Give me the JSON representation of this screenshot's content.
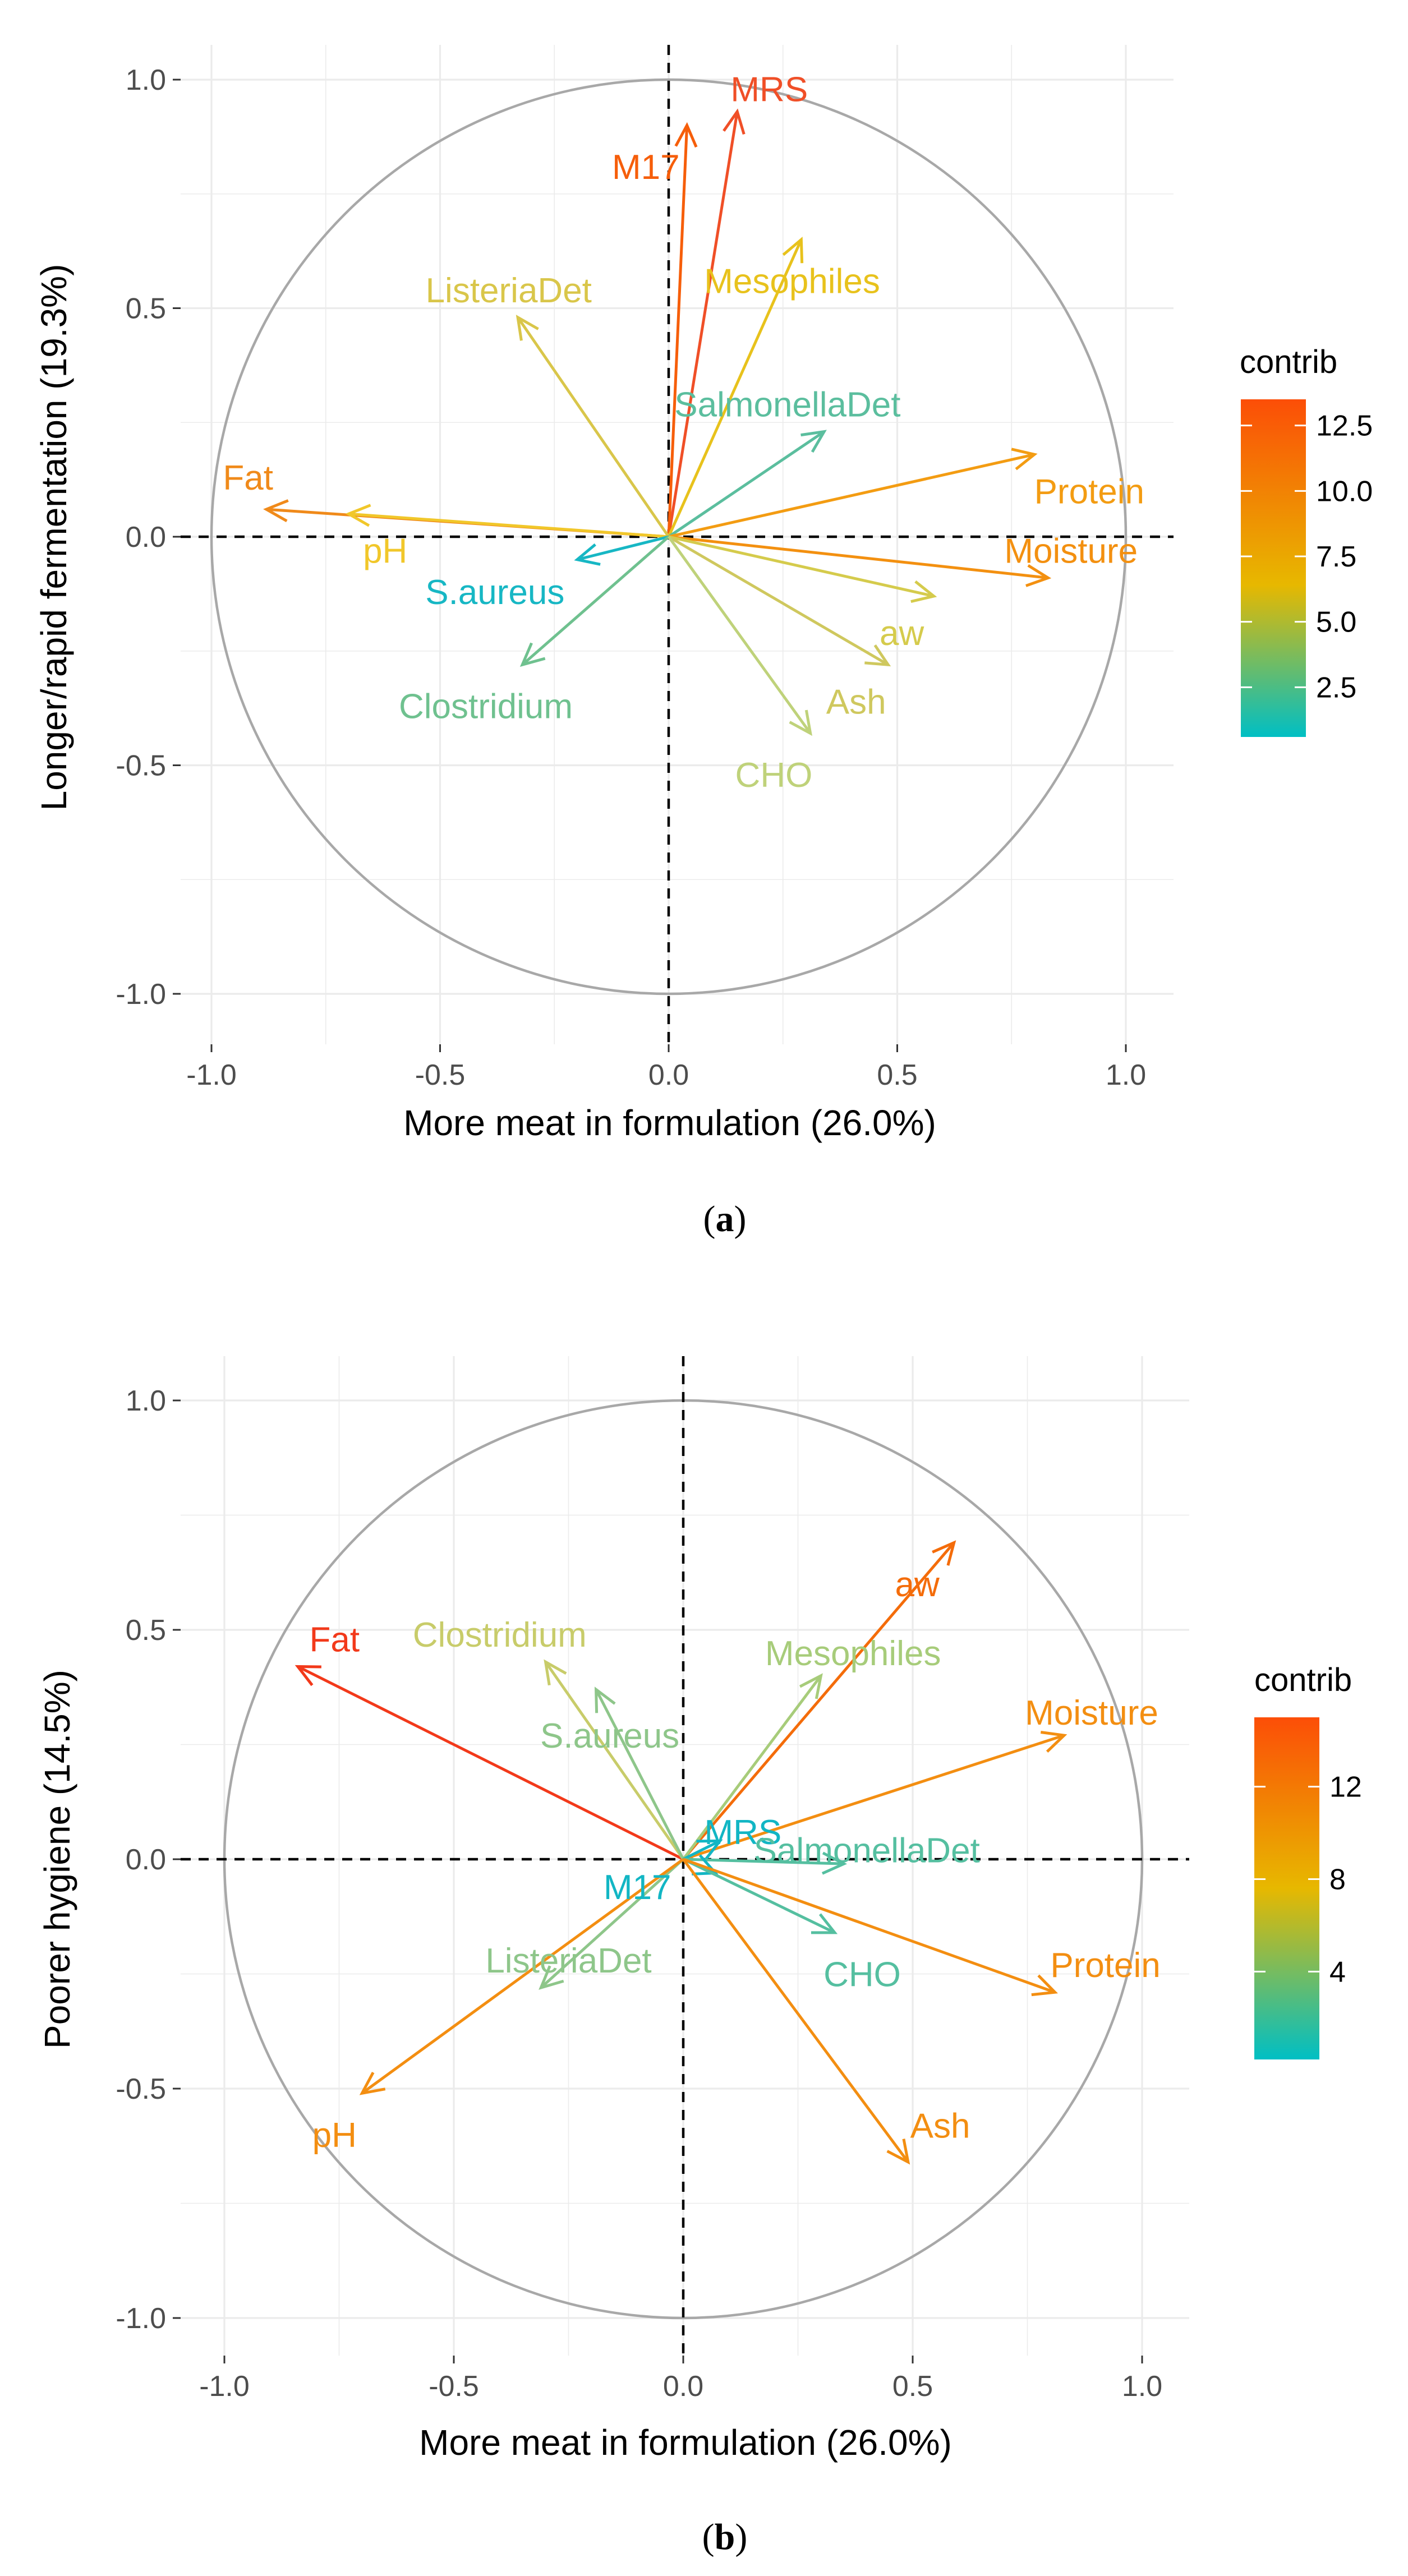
{
  "colors": {
    "low": "#00BFC4",
    "mid": "#E7B800",
    "high": "#FC4E07",
    "circle": "#a8a8a8",
    "grid": "#ebebeb"
  },
  "chart_data": [
    {
      "type": "scatter",
      "subtype": "pca-variable-correlation-circle",
      "panel": "(a)",
      "panel_letter": "a",
      "xlabel": "More meat in formulation (26.0%)",
      "ylabel": "Longer/rapid fermentation (19.3%)",
      "xlim": [
        -1.0,
        1.0
      ],
      "ylim": [
        -1.0,
        1.0
      ],
      "x_ticks": [
        "-1.0",
        "-0.5",
        "0.0",
        "0.5",
        "1.0"
      ],
      "y_ticks": [
        "-1.0",
        "-0.5",
        "0.0",
        "0.5",
        "1.0"
      ],
      "grid": true,
      "legend": {
        "title": "contrib",
        "placement": "right",
        "min": 0.6,
        "max": 13.5,
        "ticks": [
          "2.5",
          "5.0",
          "7.5",
          "10.0",
          "12.5"
        ],
        "tick_values": [
          2.5,
          5.0,
          7.5,
          10.0,
          12.5
        ]
      },
      "variables": [
        {
          "name": "MRS",
          "x": 0.15,
          "y": 0.93,
          "contrib": 13.3,
          "color": "#F04F27",
          "lx": 0.22,
          "ly": 0.98
        },
        {
          "name": "M17",
          "x": 0.04,
          "y": 0.9,
          "contrib": 12.2,
          "color": "#F65E0A",
          "lx": -0.05,
          "ly": 0.81
        },
        {
          "name": "Mesophiles",
          "x": 0.29,
          "y": 0.65,
          "contrib": 6.2,
          "color": "#E8C21C",
          "lx": 0.27,
          "ly": 0.56
        },
        {
          "name": "ListeriaDet",
          "x": -0.33,
          "y": 0.48,
          "contrib": 5.5,
          "color": "#D9C64A",
          "lx": -0.35,
          "ly": 0.54
        },
        {
          "name": "SalmonellaDet",
          "x": 0.34,
          "y": 0.23,
          "contrib": 3.0,
          "color": "#5BBE9E",
          "lx": 0.26,
          "ly": 0.29
        },
        {
          "name": "Protein",
          "x": 0.8,
          "y": 0.18,
          "contrib": 9.8,
          "color": "#F39C12",
          "lx": 0.92,
          "ly": 0.1
        },
        {
          "name": "Fat",
          "x": -0.88,
          "y": 0.06,
          "contrib": 10.7,
          "color": "#F08A1A",
          "lx": -0.92,
          "ly": 0.13
        },
        {
          "name": "pH",
          "x": -0.7,
          "y": 0.05,
          "contrib": 7.4,
          "color": "#F1C72A",
          "lx": -0.62,
          "ly": -0.03
        },
        {
          "name": "Moisture",
          "x": 0.83,
          "y": -0.09,
          "contrib": 10.4,
          "color": "#F39010",
          "lx": 0.88,
          "ly": -0.03
        },
        {
          "name": "S.aureus",
          "x": -0.2,
          "y": -0.05,
          "contrib": 1.5,
          "color": "#17B7C4",
          "lx": -0.38,
          "ly": -0.12
        },
        {
          "name": "aw",
          "x": 0.58,
          "y": -0.13,
          "contrib": 5.6,
          "color": "#D5CB4C",
          "lx": 0.51,
          "ly": -0.21
        },
        {
          "name": "Ash",
          "x": 0.48,
          "y": -0.28,
          "contrib": 5.3,
          "color": "#CFC85E",
          "lx": 0.41,
          "ly": -0.36
        },
        {
          "name": "Clostridium",
          "x": -0.32,
          "y": -0.28,
          "contrib": 3.4,
          "color": "#6FC18F",
          "lx": -0.4,
          "ly": -0.37
        },
        {
          "name": "CHO",
          "x": 0.31,
          "y": -0.43,
          "contrib": 5.0,
          "color": "#BFD27A",
          "lx": 0.23,
          "ly": -0.52
        }
      ]
    },
    {
      "type": "scatter",
      "subtype": "pca-variable-correlation-circle",
      "panel": "(b)",
      "panel_letter": "b",
      "xlabel": "More meat in formulation (26.0%)",
      "ylabel": "Poorer hygiene (14.5%)",
      "xlim": [
        -1.0,
        1.0
      ],
      "ylim": [
        -1.0,
        1.0
      ],
      "x_ticks": [
        "-1.0",
        "-0.5",
        "0.0",
        "0.5",
        "1.0"
      ],
      "y_ticks": [
        "-1.0",
        "-0.5",
        "0.0",
        "0.5",
        "1.0"
      ],
      "grid": true,
      "legend": {
        "title": "contrib",
        "placement": "right",
        "min": 0.2,
        "max": 15.0,
        "ticks": [
          "4",
          "8",
          "12"
        ],
        "tick_values": [
          4,
          8,
          12
        ]
      },
      "variables": [
        {
          "name": "aw",
          "x": 0.59,
          "y": 0.69,
          "contrib": 13.5,
          "color": "#F46C0A",
          "lx": 0.51,
          "ly": 0.6
        },
        {
          "name": "Fat",
          "x": -0.84,
          "y": 0.42,
          "contrib": 15.0,
          "color": "#F2391A",
          "lx": -0.76,
          "ly": 0.48
        },
        {
          "name": "Clostridium",
          "x": -0.3,
          "y": 0.43,
          "contrib": 5.5,
          "color": "#C8CC6A",
          "lx": -0.4,
          "ly": 0.49
        },
        {
          "name": "Mesophiles",
          "x": 0.3,
          "y": 0.4,
          "contrib": 5.0,
          "color": "#A7CC7A",
          "lx": 0.37,
          "ly": 0.45
        },
        {
          "name": "S.aureus",
          "x": -0.19,
          "y": 0.37,
          "contrib": 4.0,
          "color": "#8EC68A",
          "lx": -0.16,
          "ly": 0.27
        },
        {
          "name": "Moisture",
          "x": 0.83,
          "y": 0.27,
          "contrib": 11.3,
          "color": "#F38E11",
          "lx": 0.89,
          "ly": 0.32
        },
        {
          "name": "MRS",
          "x": 0.08,
          "y": 0.04,
          "contrib": 0.8,
          "color": "#12B6C4",
          "lx": 0.13,
          "ly": 0.06
        },
        {
          "name": "SalmonellaDet",
          "x": 0.35,
          "y": -0.01,
          "contrib": 2.2,
          "color": "#55BFA0",
          "lx": 0.4,
          "ly": 0.02
        },
        {
          "name": "M17",
          "x": 0.07,
          "y": -0.03,
          "contrib": 0.8,
          "color": "#12B6C4",
          "lx": -0.1,
          "ly": -0.06
        },
        {
          "name": "ListeriaDet",
          "x": -0.31,
          "y": -0.28,
          "contrib": 4.2,
          "color": "#8EC68A",
          "lx": -0.25,
          "ly": -0.22
        },
        {
          "name": "CHO",
          "x": 0.33,
          "y": -0.16,
          "contrib": 2.5,
          "color": "#55BFA0",
          "lx": 0.39,
          "ly": -0.25
        },
        {
          "name": "Protein",
          "x": 0.81,
          "y": -0.29,
          "contrib": 10.7,
          "color": "#F38E11",
          "lx": 0.92,
          "ly": -0.23
        },
        {
          "name": "pH",
          "x": -0.7,
          "y": -0.51,
          "contrib": 10.9,
          "color": "#F38E11",
          "lx": -0.76,
          "ly": -0.6
        },
        {
          "name": "Ash",
          "x": 0.49,
          "y": -0.66,
          "contrib": 11.5,
          "color": "#F38E11",
          "lx": 0.56,
          "ly": -0.58
        }
      ]
    }
  ]
}
